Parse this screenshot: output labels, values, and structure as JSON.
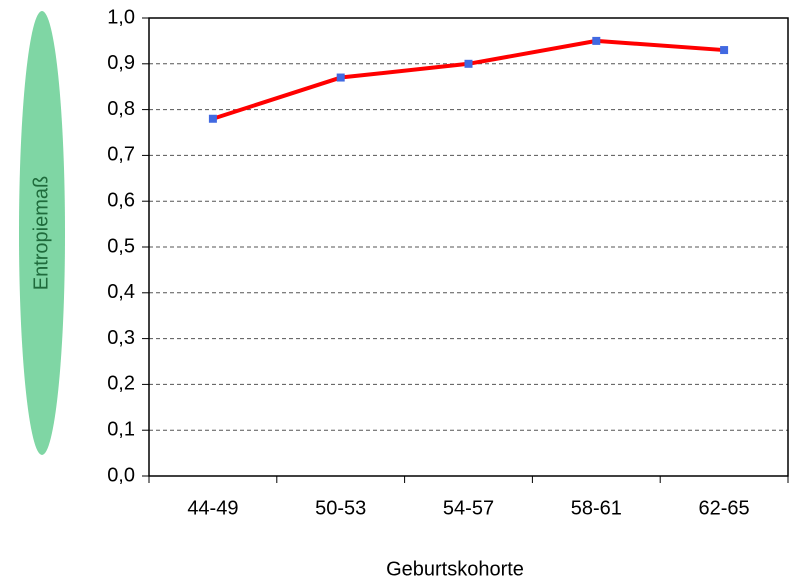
{
  "chart_data": {
    "type": "line",
    "x_label": "Geburtskohorte",
    "y_label": "Entropiemaß",
    "categories": [
      "44-49",
      "50-53",
      "54-57",
      "58-61",
      "62-65"
    ],
    "series": [
      {
        "name": "Entropiemaß",
        "color": "#ff0000",
        "marker_color": "#4169e1",
        "values": [
          0.78,
          0.87,
          0.9,
          0.95,
          0.93
        ]
      }
    ],
    "ylim": [
      0,
      1
    ],
    "yticks": [
      {
        "value": 0,
        "label": "0,0"
      },
      {
        "value": 0.1,
        "label": "0,1"
      },
      {
        "value": 0.2,
        "label": "0,2"
      },
      {
        "value": 0.3,
        "label": "0,3"
      },
      {
        "value": 0.4,
        "label": "0,4"
      },
      {
        "value": 0.5,
        "label": "0,5"
      },
      {
        "value": 0.6,
        "label": "0,6"
      },
      {
        "value": 0.7,
        "label": "0,7"
      },
      {
        "value": 0.8,
        "label": "0,8"
      },
      {
        "value": 0.9,
        "label": "0,9"
      },
      {
        "value": 1,
        "label": "1,0"
      }
    ],
    "grid": true
  }
}
